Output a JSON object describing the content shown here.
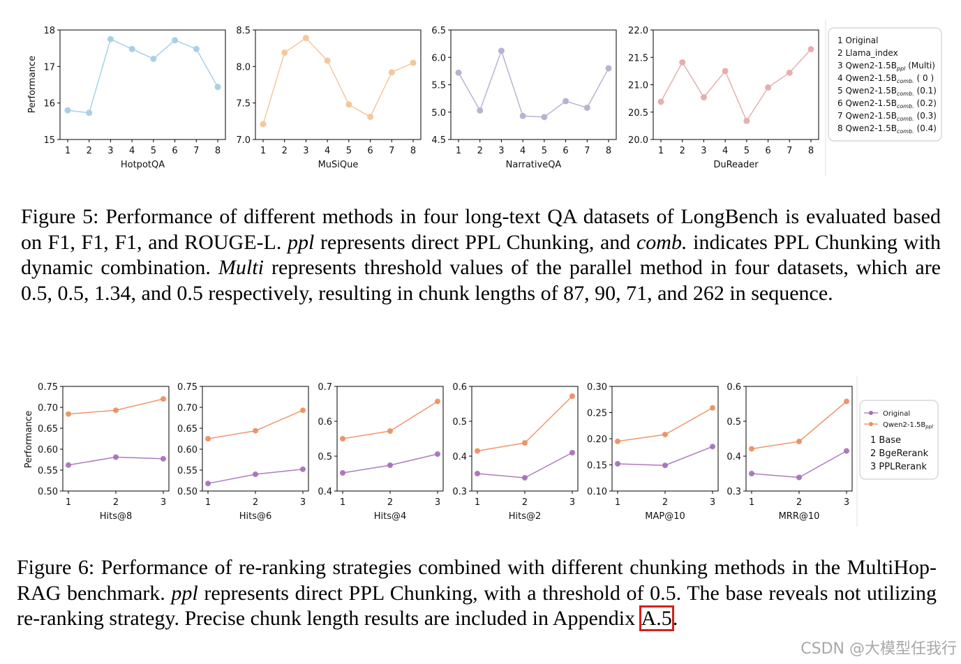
{
  "figure5": {
    "ylabel": "Performance",
    "legend": [
      {
        "num": "1",
        "name": "Original",
        "sub": "",
        "tail": ""
      },
      {
        "num": "2",
        "name": "Llama_index",
        "sub": "",
        "tail": ""
      },
      {
        "num": "3",
        "name": "Qwen2-1.5B",
        "sub": "ppl",
        "tail": " (Multi)"
      },
      {
        "num": "4",
        "name": "Qwen2-1.5B",
        "sub": "comb.",
        "tail": " ( 0  )"
      },
      {
        "num": "5",
        "name": "Qwen2-1.5B",
        "sub": "comb.",
        "tail": " (0.1)"
      },
      {
        "num": "6",
        "name": "Qwen2-1.5B",
        "sub": "comb.",
        "tail": " (0.2)"
      },
      {
        "num": "7",
        "name": "Qwen2-1.5B",
        "sub": "comb.",
        "tail": " (0.3)"
      },
      {
        "num": "8",
        "name": "Qwen2-1.5B",
        "sub": "comb.",
        "tail": " (0.4)"
      }
    ],
    "caption": {
      "p1": "Figure 5: Performance of different methods in four long-text QA datasets of LongBench is evaluated based on F1, F1, F1, and ROUGE-L. ",
      "ppl": "ppl",
      "p2": " represents direct PPL Chunking, and ",
      "comb": "comb.",
      "p3": " indicates PPL Chunking with dynamic combination. ",
      "multi": "Multi",
      "p4": " represents threshold values of the parallel method in four datasets, which are 0.5, 0.5, 1.34, and 0.5 respectively, resulting in chunk lengths of 87, 90, 71, and 262 in sequence."
    }
  },
  "figure6": {
    "ylabel": "Performance",
    "legend_series": [
      {
        "name": "Original",
        "sub": "",
        "color": "#a46db8"
      },
      {
        "name": "Qwen2-1.5B",
        "sub": "ppl",
        "color": "#ec8c5e"
      }
    ],
    "legend_items": [
      "1 Base",
      "2 BgeRerank",
      "3 PPLRerank"
    ],
    "caption": {
      "p1": "Figure 6: Performance of re-ranking strategies combined with different chunking methods in the MultiHop-RAG benchmark. ",
      "ppl": "ppl",
      "p2": " represents direct PPL Chunking, with a threshold of 0.5. The base reveals not utilizing re-ranking strategy. Precise chunk length results are included in Appendix ",
      "ref": "A.5",
      "p3": "."
    }
  },
  "watermark": "CSDN @大模型任我行",
  "chart_data": [
    {
      "type": "line",
      "title": "",
      "xlabel": "HotpotQA",
      "ylabel": "Performance",
      "x": [
        1,
        2,
        3,
        4,
        5,
        6,
        7,
        8
      ],
      "values": [
        15.8,
        15.73,
        17.75,
        17.48,
        17.21,
        17.72,
        17.48,
        16.44
      ],
      "ylim": [
        15,
        18
      ],
      "yticks": [
        "15",
        "16",
        "17",
        "18"
      ],
      "color": "#a9d1e6"
    },
    {
      "type": "line",
      "title": "",
      "xlabel": "MuSiQue",
      "ylabel": "",
      "x": [
        1,
        2,
        3,
        4,
        5,
        6,
        7,
        8
      ],
      "values": [
        7.21,
        8.19,
        8.39,
        8.08,
        7.48,
        7.31,
        7.92,
        8.05
      ],
      "ylim": [
        7.0,
        8.5
      ],
      "yticks": [
        "7.0",
        "7.5",
        "8.0",
        "8.5"
      ],
      "color": "#f4c79d"
    },
    {
      "type": "line",
      "title": "",
      "xlabel": "NarrativeQA",
      "ylabel": "",
      "x": [
        1,
        2,
        3,
        4,
        5,
        6,
        7,
        8
      ],
      "values": [
        5.72,
        5.03,
        6.12,
        4.93,
        4.91,
        5.2,
        5.08,
        5.8
      ],
      "ylim": [
        4.5,
        6.5
      ],
      "yticks": [
        "4.5",
        "5.0",
        "5.5",
        "6.0",
        "6.5"
      ],
      "color": "#b8b3d2"
    },
    {
      "type": "line",
      "title": "",
      "xlabel": "DuReader",
      "ylabel": "",
      "x": [
        1,
        2,
        3,
        4,
        5,
        6,
        7,
        8
      ],
      "values": [
        20.69,
        21.41,
        20.77,
        21.25,
        20.34,
        20.95,
        21.22,
        21.65
      ],
      "ylim": [
        20.0,
        22.0
      ],
      "yticks": [
        "20.0",
        "20.5",
        "21.0",
        "21.5",
        "22.0"
      ],
      "color": "#e6afaf"
    },
    {
      "type": "line",
      "title": "",
      "xlabel": "Hits@8",
      "ylabel": "Performance",
      "x": [
        1,
        2,
        3
      ],
      "series": [
        {
          "name": "Original",
          "values": [
            0.562,
            0.581,
            0.577
          ]
        },
        {
          "name": "Qwen2-1.5Bppl",
          "values": [
            0.684,
            0.693,
            0.72
          ]
        }
      ],
      "ylim": [
        0.5,
        0.75
      ],
      "yticks": [
        "0.50",
        "0.55",
        "0.60",
        "0.65",
        "0.70",
        "0.75"
      ]
    },
    {
      "type": "line",
      "title": "",
      "xlabel": "Hits@6",
      "ylabel": "",
      "x": [
        1,
        2,
        3
      ],
      "series": [
        {
          "name": "Original",
          "values": [
            0.518,
            0.54,
            0.552
          ]
        },
        {
          "name": "Qwen2-1.5Bppl",
          "values": [
            0.625,
            0.644,
            0.693
          ]
        }
      ],
      "ylim": [
        0.5,
        0.75
      ],
      "yticks": [
        "0.50",
        "0.55",
        "0.60",
        "0.65",
        "0.70",
        "0.75"
      ]
    },
    {
      "type": "line",
      "title": "",
      "xlabel": "Hits@4",
      "ylabel": "",
      "x": [
        1,
        2,
        3
      ],
      "series": [
        {
          "name": "Original",
          "values": [
            0.452,
            0.474,
            0.506
          ]
        },
        {
          "name": "Qwen2-1.5Bppl",
          "values": [
            0.55,
            0.572,
            0.657
          ]
        }
      ],
      "ylim": [
        0.4,
        0.7
      ],
      "yticks": [
        "0.4",
        "0.5",
        "0.6",
        "0.7"
      ]
    },
    {
      "type": "line",
      "title": "",
      "xlabel": "Hits@2",
      "ylabel": "",
      "x": [
        1,
        2,
        3
      ],
      "series": [
        {
          "name": "Original",
          "values": [
            0.35,
            0.338,
            0.41
          ]
        },
        {
          "name": "Qwen2-1.5Bppl",
          "values": [
            0.415,
            0.438,
            0.572
          ]
        }
      ],
      "ylim": [
        0.3,
        0.6
      ],
      "yticks": [
        "0.3",
        "0.4",
        "0.5",
        "0.6"
      ]
    },
    {
      "type": "line",
      "title": "",
      "xlabel": "MAP@10",
      "ylabel": "",
      "x": [
        1,
        2,
        3
      ],
      "series": [
        {
          "name": "Original",
          "values": [
            0.152,
            0.149,
            0.185
          ]
        },
        {
          "name": "Qwen2-1.5Bppl",
          "values": [
            0.195,
            0.208,
            0.259
          ]
        }
      ],
      "ylim": [
        0.1,
        0.3
      ],
      "yticks": [
        "0.10",
        "0.15",
        "0.20",
        "0.25",
        "0.30"
      ]
    },
    {
      "type": "line",
      "title": "",
      "xlabel": "MRR@10",
      "ylabel": "",
      "x": [
        1,
        2,
        3
      ],
      "series": [
        {
          "name": "Original",
          "values": [
            0.35,
            0.339,
            0.415
          ]
        },
        {
          "name": "Qwen2-1.5Bppl",
          "values": [
            0.421,
            0.442,
            0.557
          ]
        }
      ],
      "ylim": [
        0.3,
        0.6
      ],
      "yticks": [
        "0.3",
        "0.4",
        "0.5",
        "0.6"
      ]
    }
  ]
}
